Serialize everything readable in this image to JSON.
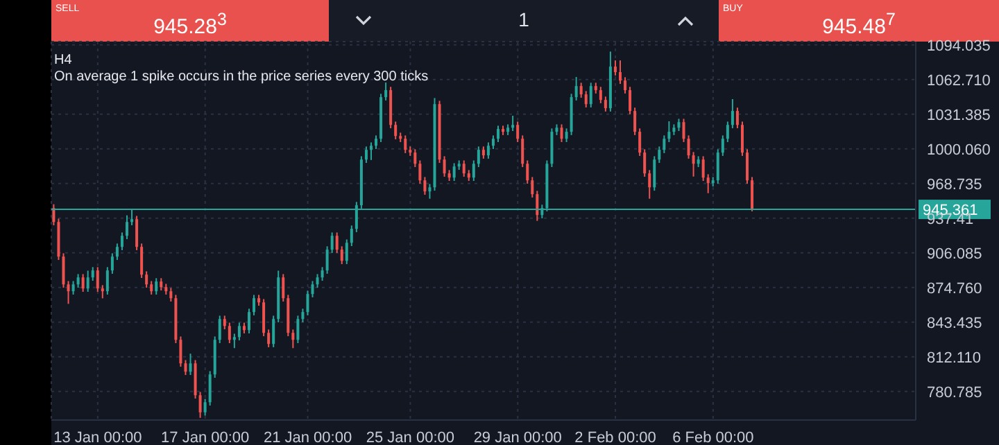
{
  "chart_data": {
    "type": "candlestick",
    "title": "H4",
    "subtitle": "On average 1 spike occurs in the price series every 300 ticks",
    "annotations": [
      "SELL",
      "945.28$^{3}$",
      "1",
      "BUY",
      "945.48$^{7}$"
    ],
    "categories": [
      null,
      null,
      null,
      null,
      null,
      null,
      null,
      null,
      null,
      "13 Jan 00:00",
      null,
      null,
      null,
      null,
      null,
      null,
      null,
      null,
      null,
      null,
      null,
      null,
      null,
      null,
      null,
      null,
      null,
      null,
      null,
      null,
      null,
      "17 Jan 00:00",
      null,
      null,
      null,
      null,
      null,
      null,
      null,
      null,
      null,
      null,
      null,
      null,
      null,
      null,
      null,
      null,
      null,
      null,
      null,
      null,
      "21 Jan 00:00",
      null,
      null,
      null,
      null,
      null,
      null,
      null,
      null,
      null,
      null,
      null,
      null,
      null,
      null,
      null,
      null,
      null,
      null,
      null,
      null,
      "25 Jan 00:00",
      null,
      null,
      null,
      null,
      null,
      null,
      null,
      null,
      null,
      null,
      null,
      null,
      null,
      null,
      null,
      null,
      null,
      null,
      null,
      null,
      null,
      "29 Jan 00:00",
      null,
      null,
      null,
      null,
      null,
      null,
      null,
      null,
      null,
      null,
      null,
      null,
      null,
      null,
      null,
      null,
      null,
      null,
      null,
      "2 Feb 00:00",
      null,
      null,
      null,
      null,
      null,
      null,
      null,
      null,
      null,
      null,
      null,
      null,
      null,
      null,
      null,
      null,
      null,
      null,
      null,
      "6 Feb 00:00",
      null,
      null,
      null,
      null,
      null,
      null,
      null,
      null,
      null,
      null,
      null,
      null,
      null,
      null,
      null,
      null,
      null,
      null,
      null,
      null,
      null,
      null,
      null,
      null,
      null,
      null,
      null,
      null,
      null,
      null,
      null,
      null,
      null,
      null,
      null,
      null,
      null,
      null,
      null,
      null,
      null
    ],
    "ohlc": [
      [
        946.6,
        950,
        931,
        934.0
      ],
      [
        934.0,
        937,
        899.7,
        902.7
      ],
      [
        902.7,
        905.7,
        874.6,
        877.6
      ],
      [
        877.6,
        880.6,
        860,
        871.4
      ],
      [
        871.4,
        880.6,
        868.4,
        877.6
      ],
      [
        877.6,
        886.9,
        874.6,
        883.9
      ],
      [
        883.9,
        886.9,
        870.9,
        873.9
      ],
      [
        873.9,
        890,
        870.9,
        883.9
      ],
      [
        883.9,
        893.2,
        880.9,
        890.2
      ],
      [
        890.2,
        893.2,
        870.9,
        873.9
      ],
      [
        873.9,
        876.9,
        865,
        871.4
      ],
      [
        871.4,
        893.2,
        868.4,
        890.2
      ],
      [
        890.2,
        905.7,
        887.2,
        902.7
      ],
      [
        902.7,
        914.5,
        899.7,
        911.5
      ],
      [
        911.5,
        924.5,
        908.5,
        921.5
      ],
      [
        921.5,
        940,
        918.5,
        934.0
      ],
      [
        934.0,
        946,
        931,
        936.5
      ],
      [
        936.5,
        939.5,
        908.5,
        911.5
      ],
      [
        911.5,
        914.5,
        883.4,
        886.4
      ],
      [
        886.4,
        889.4,
        874.6,
        877.6
      ],
      [
        877.6,
        880.6,
        868.4,
        871.4
      ],
      [
        871.4,
        883.2,
        868.4,
        880.2
      ],
      [
        880.2,
        883.2,
        872.1,
        875.1
      ],
      [
        875.1,
        878.1,
        868.4,
        871.4
      ],
      [
        871.4,
        874.4,
        862.1,
        865.1
      ],
      [
        865.1,
        868.1,
        824.5,
        827.5
      ],
      [
        827.5,
        830.5,
        803.2,
        806.2
      ],
      [
        806.2,
        809.2,
        795.7,
        798.7
      ],
      [
        798.7,
        815,
        795.7,
        806.2
      ],
      [
        806.2,
        809.2,
        774.4,
        777.4
      ],
      [
        777.4,
        780.4,
        757,
        762
      ],
      [
        762,
        774.1,
        759,
        771.1
      ],
      [
        771.1,
        799.2,
        768.1,
        796.2
      ],
      [
        796.2,
        830.5,
        793.2,
        827.5
      ],
      [
        827.5,
        849.3,
        824.5,
        846.3
      ],
      [
        846.3,
        849.3,
        837,
        840.0
      ],
      [
        840.0,
        843,
        824.5,
        827.5
      ],
      [
        827.5,
        833,
        820,
        830.0
      ],
      [
        830.0,
        843,
        827,
        840.0
      ],
      [
        840.0,
        843,
        833.3,
        836.3
      ],
      [
        836.3,
        855.6,
        833.3,
        852.6
      ],
      [
        852.6,
        868.1,
        849.6,
        865.1
      ],
      [
        865.1,
        868.1,
        858.3,
        861.3
      ],
      [
        861.3,
        864.3,
        830.8,
        833.8
      ],
      [
        833.8,
        836.8,
        820.8,
        823.8
      ],
      [
        823.8,
        849.3,
        820.8,
        846.3
      ],
      [
        846.3,
        890,
        843.3,
        883.9
      ],
      [
        883.9,
        886.9,
        862.1,
        865.1
      ],
      [
        865.1,
        868.1,
        830.8,
        833.8
      ],
      [
        833.8,
        836.8,
        820,
        827.5
      ],
      [
        827.5,
        849.3,
        824.5,
        846.3
      ],
      [
        846.3,
        855.6,
        843.3,
        852.6
      ],
      [
        852.6,
        871.9,
        849.6,
        868.9
      ],
      [
        868.9,
        880.6,
        865.9,
        877.6
      ],
      [
        877.6,
        886.9,
        874.6,
        883.9
      ],
      [
        883.9,
        893.2,
        880.9,
        890.2
      ],
      [
        890.2,
        912,
        887.2,
        909.0
      ],
      [
        909.0,
        924.5,
        906,
        921.5
      ],
      [
        921.5,
        924.5,
        906,
        909.0
      ],
      [
        909.0,
        912,
        895.9,
        898.9
      ],
      [
        898.9,
        918.2,
        895.9,
        915.2
      ],
      [
        915.2,
        930.8,
        912.2,
        927.8
      ],
      [
        927.8,
        952.1,
        924.8,
        949.1
      ],
      [
        949.1,
        993.4,
        946.1,
        990.4
      ],
      [
        990.4,
        1002.2,
        987.4,
        999.2
      ],
      [
        999.2,
        1005.9,
        990,
        1002.9
      ],
      [
        1002.9,
        1012.2,
        999.9,
        1009.2
      ],
      [
        1009.2,
        1049.8,
        1006.2,
        1046.8
      ],
      [
        1046.8,
        1060,
        1043.8,
        1053.1
      ],
      [
        1053.1,
        1056.1,
        1018.7,
        1021.7
      ],
      [
        1021.7,
        1024.7,
        1008.7,
        1011.7
      ],
      [
        1011.7,
        1014.7,
        1006.2,
        1009.2
      ],
      [
        1009.2,
        1012.2,
        996.2,
        999.2
      ],
      [
        999.2,
        1002.2,
        993.7,
        996.7
      ],
      [
        996.7,
        999.7,
        983.6,
        986.6
      ],
      [
        986.6,
        989.6,
        968.6,
        971.6
      ],
      [
        971.6,
        974.6,
        958.6,
        961.6
      ],
      [
        961.6,
        968.3,
        955,
        965.3
      ],
      [
        965.3,
        1046,
        962.3,
        1040.5
      ],
      [
        1040.5,
        1043.5,
        987.4,
        990.4
      ],
      [
        990.4,
        993.4,
        974.9,
        977.9
      ],
      [
        977.9,
        980.9,
        971.1,
        974.1
      ],
      [
        974.1,
        987.1,
        971.1,
        984.1
      ],
      [
        984.1,
        989.6,
        981.1,
        986.6
      ],
      [
        986.6,
        989.6,
        974.9,
        977.9
      ],
      [
        977.9,
        980.9,
        971.1,
        974.1
      ],
      [
        974.1,
        989.6,
        971.1,
        986.6
      ],
      [
        986.6,
        1002.2,
        983.6,
        999.2
      ],
      [
        999.2,
        1002.2,
        991.2,
        994.2
      ],
      [
        994.2,
        1005.9,
        991.2,
        1002.9
      ],
      [
        1002.9,
        1012.2,
        999.9,
        1009.2
      ],
      [
        1009.2,
        1021,
        1006.2,
        1018.0
      ],
      [
        1018.0,
        1021,
        1012.5,
        1015.5
      ],
      [
        1015.5,
        1022.2,
        1012.5,
        1019.2
      ],
      [
        1019.2,
        1030,
        1016.2,
        1021.7
      ],
      [
        1021.7,
        1024.7,
        1006.2,
        1009.2
      ],
      [
        1009.2,
        1012.2,
        983.6,
        986.6
      ],
      [
        986.6,
        989.6,
        968.6,
        971.6
      ],
      [
        971.6,
        974.6,
        956.1,
        959.1
      ],
      [
        959.1,
        962.1,
        935,
        940.3
      ],
      [
        940.3,
        949.6,
        937.3,
        946.6
      ],
      [
        946.6,
        989.6,
        943.6,
        986.6
      ],
      [
        986.6,
        1018.5,
        983.6,
        1015.5
      ],
      [
        1015.5,
        1022.2,
        1012.5,
        1019.2
      ],
      [
        1019.2,
        1022.2,
        1006.2,
        1009.2
      ],
      [
        1009.2,
        1018.5,
        1006.2,
        1015.5
      ],
      [
        1015.5,
        1049.8,
        1012.5,
        1046.8
      ],
      [
        1046.8,
        1065,
        1043.8,
        1056.8
      ],
      [
        1056.8,
        1059.8,
        1046.3,
        1049.3
      ],
      [
        1049.3,
        1052.3,
        1037.5,
        1040.5
      ],
      [
        1040.5,
        1059.8,
        1037.5,
        1056.8
      ],
      [
        1056.8,
        1059.8,
        1050.1,
        1053.1
      ],
      [
        1053.1,
        1056.1,
        1041.3,
        1044.3
      ],
      [
        1044.3,
        1047.3,
        1033.8,
        1036.8
      ],
      [
        1036.8,
        1088,
        1033.8,
        1074.4
      ],
      [
        1074.4,
        1080,
        1066.4,
        1069.4
      ],
      [
        1069.4,
        1080,
        1058.8,
        1061.8
      ],
      [
        1061.8,
        1064.8,
        1050.1,
        1053.1
      ],
      [
        1053.1,
        1056.1,
        1031.3,
        1034.3
      ],
      [
        1034.3,
        1037.3,
        1012.5,
        1015.5
      ],
      [
        1015.5,
        1018.5,
        993.7,
        996.7
      ],
      [
        996.7,
        999.7,
        974.9,
        977.9
      ],
      [
        977.9,
        980.9,
        955,
        965.3
      ],
      [
        965.3,
        993.4,
        962.3,
        990.4
      ],
      [
        990.4,
        1002.2,
        987.4,
        999.2
      ],
      [
        999.2,
        1012.2,
        996.2,
        1009.2
      ],
      [
        1009.2,
        1025,
        1006.2,
        1015.5
      ],
      [
        1015.5,
        1022.2,
        1012.5,
        1019.2
      ],
      [
        1019.2,
        1027.2,
        1016.2,
        1024.2
      ],
      [
        1024.2,
        1027.2,
        1006.2,
        1009.2
      ],
      [
        1009.2,
        1012.2,
        991.2,
        994.2
      ],
      [
        994.2,
        997.2,
        975,
        986.6
      ],
      [
        986.6,
        993.4,
        983.6,
        990.4
      ],
      [
        990.4,
        993.4,
        971.1,
        974.1
      ],
      [
        974.1,
        977.1,
        960,
        969.1
      ],
      [
        969.1,
        974.6,
        966.1,
        971.6
      ],
      [
        971.6,
        999.7,
        968.6,
        996.7
      ],
      [
        996.7,
        1012.2,
        993.7,
        1009.2
      ],
      [
        1009.2,
        1024.7,
        1006.2,
        1021.7
      ],
      [
        1021.7,
        1045,
        1018.7,
        1034.3
      ],
      [
        1034.3,
        1037.3,
        1018.7,
        1021.7
      ],
      [
        1021.7,
        1024.7,
        993.7,
        996.7
      ],
      [
        996.7,
        999.7,
        968.6,
        971.6
      ],
      [
        971.6,
        974.6,
        943.6,
        945.4
      ],
      null,
      null,
      null,
      null,
      null,
      null,
      null,
      null,
      null,
      null,
      null,
      null,
      null,
      null,
      null,
      null,
      null,
      null,
      null,
      null,
      null,
      null,
      null,
      null,
      null,
      null,
      null,
      null,
      null,
      null,
      null,
      null,
      null
    ],
    "ylim": [
      755,
      1097
    ],
    "yticks": [
      780.785,
      {
        "value": 812.11,
        "label": "812.110"
      },
      843.435,
      {
        "value": 874.76,
        "label": "874.760"
      },
      906.085,
      937.41,
      968.735,
      {
        "value": 1000.06,
        "label": "1000.060"
      },
      1031.385,
      {
        "value": 1062.71,
        "label": "1062.710"
      },
      1094.035
    ],
    "ref_lines": [
      {
        "axis": "y",
        "value": 945.361,
        "label": "945.361",
        "color": "#26a69a"
      }
    ],
    "grid": true
  }
}
